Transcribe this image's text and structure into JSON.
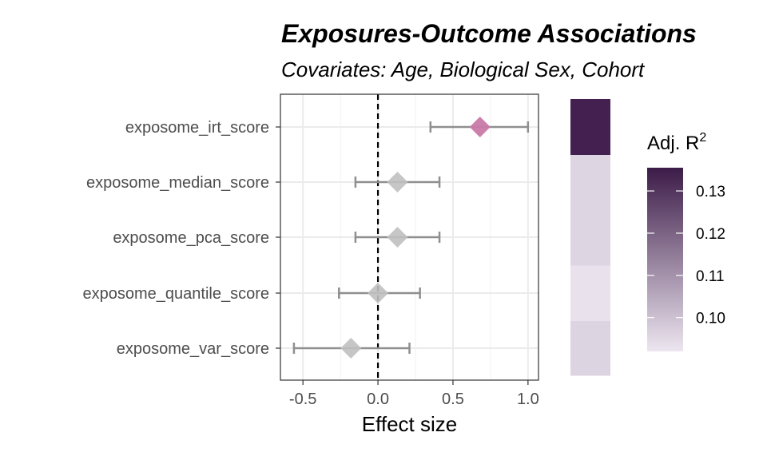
{
  "chart_data": {
    "type": "scatter",
    "subtype": "forest-plot",
    "title": "Exposures-Outcome Associations",
    "subtitle": "Covariates: Age, Biological Sex, Cohort",
    "xlabel": "Effect size",
    "ylabel": "",
    "xlim": [
      -0.65,
      1.07
    ],
    "x_ticks": [
      "-0.5",
      "0.0",
      "0.5",
      "1.0"
    ],
    "x_tick_values": [
      -0.5,
      0.0,
      0.5,
      1.0
    ],
    "reference_line": 0,
    "grid": true,
    "categories": [
      "exposome_irt_score",
      "exposome_median_score",
      "exposome_pca_score",
      "exposome_quantile_score",
      "exposome_var_score"
    ],
    "estimates": [
      0.68,
      0.13,
      0.13,
      0.0,
      -0.18
    ],
    "ci_lower": [
      0.35,
      -0.15,
      -0.15,
      -0.26,
      -0.56
    ],
    "ci_upper": [
      1.0,
      0.41,
      0.41,
      0.28,
      0.21
    ],
    "highlight": [
      true,
      false,
      false,
      false,
      false
    ],
    "highlight_color": "#c87aa8",
    "point_color": "#c0c0c0",
    "adj_r2": [
      0.135,
      0.098,
      0.098,
      0.094,
      0.098
    ],
    "heat_colors": [
      "#43204f",
      "#ded5e3",
      "#ded5e3",
      "#e9e2ec",
      "#ddd4e2"
    ],
    "legend": {
      "title_main": "Adj. R",
      "title_sup": "2",
      "labels": [
        "0.13",
        "0.12",
        "0.11",
        "0.10"
      ],
      "label_values": [
        0.13,
        0.12,
        0.11,
        0.1
      ],
      "range": [
        0.092,
        0.1355
      ],
      "color_low": "#ede6f0",
      "color_high": "#3c1b48",
      "placement": "right"
    }
  }
}
